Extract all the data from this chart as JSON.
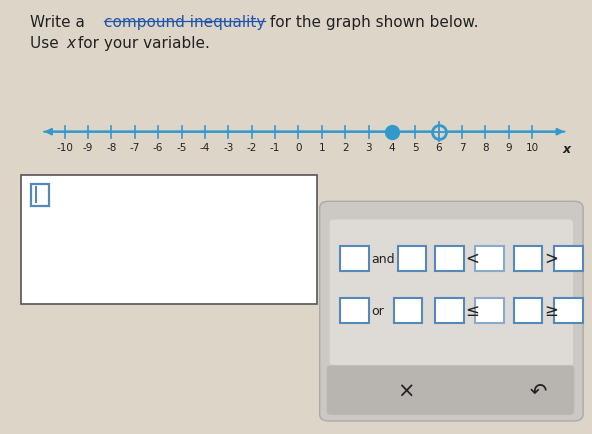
{
  "bg_color": "#ddd5c8",
  "number_line_min": -10,
  "number_line_max": 10,
  "solid_dot": 4,
  "open_dot": 6,
  "line_color": "#3399cc",
  "dot_color": "#3399cc",
  "tick_labels": [
    -10,
    -9,
    -8,
    -7,
    -6,
    -5,
    -4,
    -3,
    -2,
    -1,
    0,
    1,
    2,
    3,
    4,
    5,
    6,
    7,
    8,
    9,
    10
  ],
  "text_color": "#222222",
  "box_border_color": "#555555",
  "blue_box_color": "#5588bb",
  "panel_color": "#ccc8c4",
  "panel_inner_color": "#dedad6",
  "panel_bottom_color": "#b8b4b0"
}
